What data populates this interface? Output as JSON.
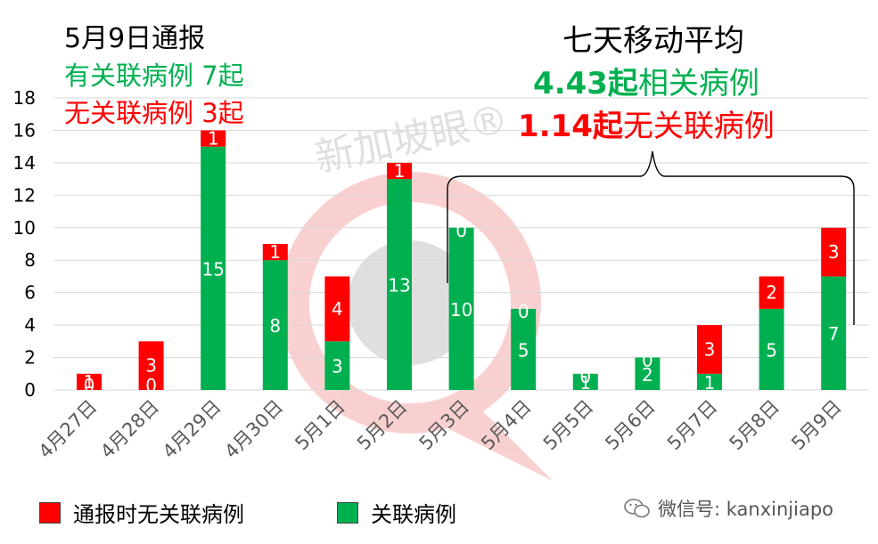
{
  "header": {
    "title": "5月9日通报",
    "linked_note": "有关联病例 7起",
    "unlinked_note": "无关联病例 3起"
  },
  "average": {
    "title": "七天移动平均",
    "linked_value": "4.43起",
    "linked_text": "相关病例",
    "unlinked_value": "1.14起",
    "unlinked_text": "无关联病例"
  },
  "colors": {
    "unlinked": "#ff0000",
    "linked": "#00b050",
    "grid": "#d9d9d9",
    "axis_text": "#595959"
  },
  "chart_data": {
    "type": "bar",
    "stacked": true,
    "categories": [
      "4月27日",
      "4月28日",
      "4月29日",
      "4月30日",
      "5月1日",
      "5月2日",
      "5月3日",
      "5月4日",
      "5月5日",
      "5月6日",
      "5月7日",
      "5月8日",
      "5月9日"
    ],
    "series": [
      {
        "name": "关联病例",
        "color": "#00b050",
        "values": [
          0,
          0,
          15,
          8,
          3,
          13,
          10,
          5,
          1,
          2,
          1,
          5,
          7
        ]
      },
      {
        "name": "通报时无关联病例",
        "color": "#ff0000",
        "values": [
          1,
          3,
          1,
          1,
          4,
          1,
          0,
          0,
          0,
          0,
          3,
          2,
          3
        ]
      }
    ],
    "ylim": [
      0,
      18
    ],
    "yticks": [
      0,
      2,
      4,
      6,
      8,
      10,
      12,
      14,
      16,
      18
    ],
    "grid": true,
    "legend_position": "bottom"
  },
  "legend": {
    "unlinked_label": "通报时无关联病例",
    "linked_label": "关联病例"
  },
  "watermark": {
    "text": "新加坡眼®"
  },
  "footer": {
    "wechat_label": "微信号: kanxinjiapo",
    "wechat_icon": "wechat-icon"
  }
}
